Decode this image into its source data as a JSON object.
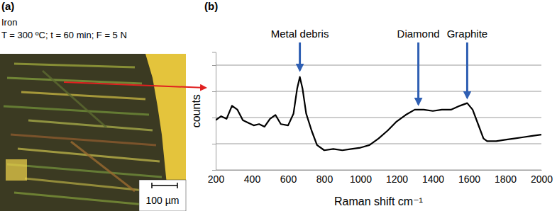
{
  "chart_data": {
    "type": "line",
    "panel_label": "(b)",
    "x_label": "Raman shift cm⁻¹",
    "y_label": "counts",
    "x": [
      200,
      230,
      260,
      290,
      320,
      350,
      380,
      410,
      440,
      470,
      500,
      530,
      560,
      600,
      630,
      650,
      665,
      680,
      700,
      730,
      760,
      800,
      850,
      900,
      950,
      1000,
      1050,
      1100,
      1150,
      1200,
      1250,
      1300,
      1350,
      1400,
      1450,
      1500,
      1550,
      1590,
      1620,
      1650,
      1680,
      1700,
      1750,
      1800,
      1850,
      1900,
      1950,
      2000
    ],
    "values": [
      1.9,
      2.05,
      1.95,
      2.45,
      2.3,
      1.9,
      1.8,
      1.7,
      1.75,
      1.65,
      1.95,
      2.1,
      1.75,
      1.7,
      2.15,
      3.1,
      3.55,
      3.1,
      2.15,
      1.5,
      0.95,
      0.75,
      0.8,
      0.75,
      0.8,
      0.85,
      0.95,
      1.2,
      1.5,
      1.85,
      2.1,
      2.3,
      2.3,
      2.25,
      2.3,
      2.3,
      2.45,
      2.55,
      2.3,
      1.75,
      1.2,
      1.1,
      1.1,
      1.15,
      1.2,
      1.25,
      1.3,
      1.35
    ],
    "color": "#000000",
    "xlim": [
      200,
      2000
    ],
    "xticks": [
      200,
      400,
      600,
      800,
      1000,
      1200,
      1400,
      1600,
      1800,
      2000
    ],
    "ylim": [
      0,
      4.5
    ],
    "yticks": [
      0,
      1,
      2,
      3,
      4
    ],
    "grid": true,
    "tick_labels": "x",
    "annotations": [
      {
        "text": "Metal debris",
        "x": 665,
        "y": 3.75
      },
      {
        "text": "Diamond",
        "x": 1320,
        "y": 2.45
      },
      {
        "text": "Graphite",
        "x": 1590,
        "y": 2.7
      }
    ]
  },
  "panel_a": {
    "label": "(a)",
    "material": "Iron",
    "conditions": "T = 300 ºC; t = 60 min; F = 5 N",
    "scale_bar": "100 µm"
  }
}
